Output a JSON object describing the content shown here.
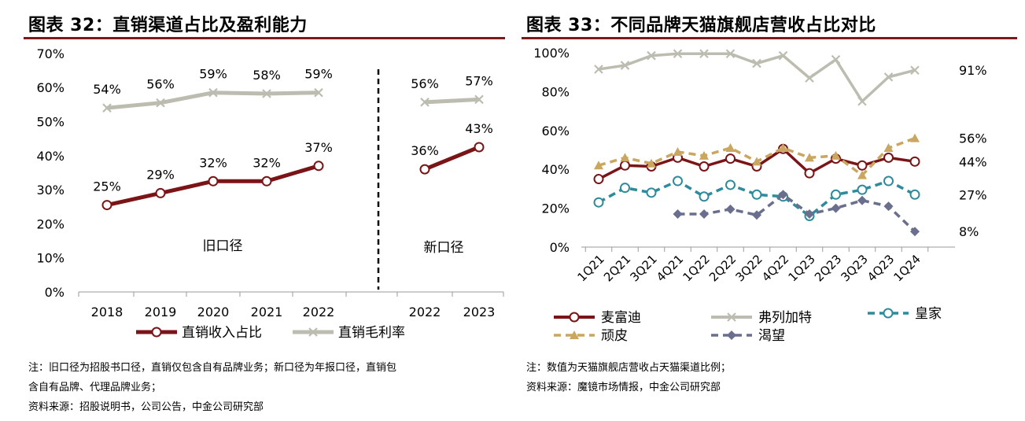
{
  "left": {
    "title": "图表 32：直销渠道占比及盈利能力",
    "notes": [
      "注：旧口径为招股书口径，直销仅包含自有品牌业务；新口径为年报口径，直销包",
      "含自有品牌、代理品牌业务；",
      "资料来源：招股说明书，公司公告，中金公司研究部"
    ]
  },
  "right": {
    "title": "图表 33：不同品牌天猫旗舰店营收占比对比",
    "notes": [
      "注：数值为天猫旗舰店营收占天猫渠道比例；",
      "资料来源：魔镜市场情报，中金公司研究部"
    ]
  },
  "chart_data": [
    {
      "type": "line",
      "title": "图表 32：直销渠道占比及盈利能力",
      "ylim": [
        0,
        0.7
      ],
      "yticks": [
        "0%",
        "10%",
        "20%",
        "30%",
        "40%",
        "50%",
        "60%",
        "70%"
      ],
      "groups": [
        {
          "name": "旧口径",
          "categories": [
            "2018",
            "2019",
            "2020",
            "2021",
            "2022"
          ]
        },
        {
          "name": "新口径",
          "categories": [
            "2022",
            "2023"
          ]
        }
      ],
      "series": [
        {
          "name": "直销收入占比",
          "color": "#7b1416",
          "marker": "circle",
          "old_values": [
            0.255,
            0.29,
            0.325,
            0.325,
            0.37
          ],
          "old_labels": [
            "25%",
            "29%",
            "32%",
            "32%",
            "37%"
          ],
          "new_values": [
            0.36,
            0.425
          ],
          "new_labels": [
            "36%",
            "43%"
          ]
        },
        {
          "name": "直销毛利率",
          "color": "#bdbcb0",
          "marker": "x",
          "old_values": [
            0.54,
            0.555,
            0.585,
            0.582,
            0.585
          ],
          "old_labels": [
            "54%",
            "56%",
            "59%",
            "58%",
            "59%"
          ],
          "new_values": [
            0.557,
            0.565
          ],
          "new_labels": [
            "56%",
            "57%"
          ]
        }
      ],
      "legend_position": "bottom"
    },
    {
      "type": "line",
      "title": "图表 33：不同品牌天猫旗舰店营收占比对比",
      "ylim": [
        0,
        1
      ],
      "yticks": [
        "0%",
        "20%",
        "40%",
        "60%",
        "80%",
        "100%"
      ],
      "categories": [
        "1Q21",
        "2Q21",
        "3Q21",
        "4Q21",
        "1Q22",
        "2Q22",
        "3Q22",
        "4Q22",
        "1Q23",
        "2Q23",
        "3Q23",
        "4Q23",
        "1Q24"
      ],
      "series": [
        {
          "name": "麦富迪",
          "color": "#7b1416",
          "style": "solid",
          "marker": "circle",
          "values": [
            0.35,
            0.42,
            0.415,
            0.46,
            0.415,
            0.455,
            0.415,
            0.505,
            0.38,
            0.455,
            0.42,
            0.46,
            0.44
          ],
          "end_label": "44%"
        },
        {
          "name": "弗列加特",
          "color": "#bdbcb0",
          "style": "solid",
          "marker": "x",
          "values": [
            0.915,
            0.935,
            0.985,
            0.995,
            0.995,
            0.995,
            0.945,
            0.985,
            0.87,
            0.965,
            0.75,
            0.875,
            0.91
          ],
          "end_label": "91%"
        },
        {
          "name": "皇家",
          "color": "#2e8b9b",
          "style": "dashed",
          "marker": "circle",
          "values": [
            0.23,
            0.305,
            0.28,
            0.34,
            0.26,
            0.32,
            0.27,
            0.26,
            0.16,
            0.27,
            0.295,
            0.34,
            0.27
          ],
          "end_label": "27%"
        },
        {
          "name": "顽皮",
          "color": "#c9a760",
          "style": "dashed",
          "marker": "triangle",
          "values": [
            0.42,
            0.46,
            0.43,
            0.49,
            0.47,
            0.51,
            0.44,
            0.51,
            0.46,
            0.47,
            0.37,
            0.51,
            0.56
          ],
          "end_label": "56%"
        },
        {
          "name": "渴望",
          "color": "#6b6f8e",
          "style": "dashed",
          "marker": "diamond",
          "values": [
            null,
            null,
            null,
            0.17,
            0.17,
            0.195,
            0.165,
            0.27,
            0.17,
            0.2,
            0.24,
            0.21,
            0.08
          ],
          "end_label": "8%"
        }
      ],
      "legend_position": "bottom"
    }
  ]
}
